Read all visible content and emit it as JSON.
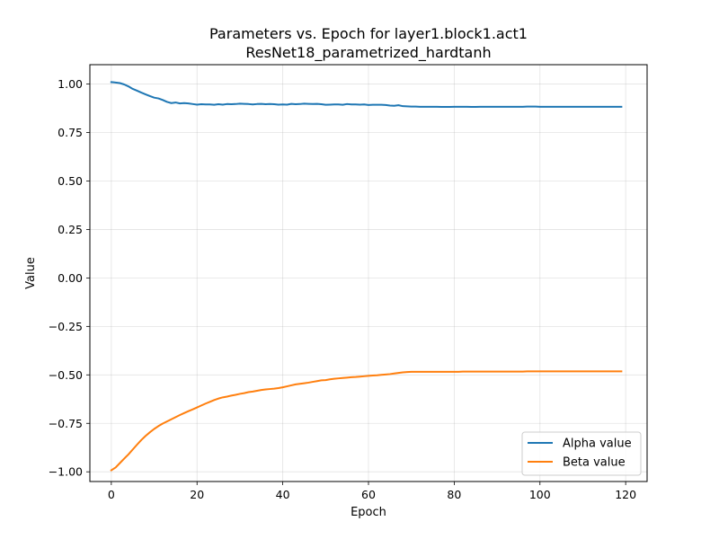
{
  "chart_data": {
    "type": "line",
    "title": "Parameters vs. Epoch for layer1.block1.act1",
    "subtitle": "ResNet18_parametrized_hardtanh",
    "xlabel": "Epoch",
    "ylabel": "Value",
    "xlim": [
      -5,
      125
    ],
    "ylim": [
      -1.05,
      1.1
    ],
    "xticks": [
      0,
      20,
      40,
      60,
      80,
      100,
      120
    ],
    "xtick_labels": [
      "0",
      "20",
      "40",
      "60",
      "80",
      "100",
      "120"
    ],
    "yticks": [
      1.0,
      0.75,
      0.5,
      0.25,
      0.0,
      -0.25,
      -0.5,
      -0.75,
      -1.0
    ],
    "ytick_labels": [
      "1.00",
      "0.75",
      "0.50",
      "0.25",
      "0.00",
      "−0.25",
      "−0.50",
      "−0.75",
      "−1.00"
    ],
    "grid": true,
    "legend_position": "bottom-right",
    "series": [
      {
        "name": "Alpha value",
        "color": "#1f77b4",
        "values": [
          1.01,
          1.008,
          1.005,
          0.998,
          0.988,
          0.975,
          0.966,
          0.956,
          0.947,
          0.938,
          0.93,
          0.926,
          0.918,
          0.908,
          0.902,
          0.905,
          0.9,
          0.902,
          0.9,
          0.897,
          0.894,
          0.896,
          0.895,
          0.895,
          0.893,
          0.896,
          0.894,
          0.897,
          0.896,
          0.897,
          0.899,
          0.898,
          0.897,
          0.895,
          0.897,
          0.898,
          0.896,
          0.897,
          0.896,
          0.894,
          0.895,
          0.894,
          0.898,
          0.896,
          0.897,
          0.899,
          0.898,
          0.897,
          0.898,
          0.896,
          0.893,
          0.894,
          0.895,
          0.895,
          0.893,
          0.897,
          0.895,
          0.895,
          0.894,
          0.895,
          0.892,
          0.893,
          0.893,
          0.893,
          0.892,
          0.889,
          0.888,
          0.891,
          0.886,
          0.885,
          0.884,
          0.884,
          0.883,
          0.883,
          0.883,
          0.883,
          0.883,
          0.882,
          0.882,
          0.882,
          0.883,
          0.883,
          0.883,
          0.883,
          0.882,
          0.882,
          0.883,
          0.883,
          0.883,
          0.883,
          0.883,
          0.883,
          0.883,
          0.883,
          0.883,
          0.883,
          0.883,
          0.884,
          0.884,
          0.884,
          0.883,
          0.883,
          0.883,
          0.883,
          0.883,
          0.883,
          0.883,
          0.883,
          0.883,
          0.883,
          0.883,
          0.883,
          0.883,
          0.883,
          0.883,
          0.883,
          0.883,
          0.883,
          0.883,
          0.883
        ]
      },
      {
        "name": "Beta value",
        "color": "#ff7f0e",
        "values": [
          -0.992,
          -0.978,
          -0.955,
          -0.932,
          -0.91,
          -0.885,
          -0.86,
          -0.836,
          -0.815,
          -0.796,
          -0.779,
          -0.764,
          -0.751,
          -0.74,
          -0.729,
          -0.718,
          -0.707,
          -0.697,
          -0.687,
          -0.678,
          -0.668,
          -0.658,
          -0.648,
          -0.639,
          -0.63,
          -0.622,
          -0.616,
          -0.612,
          -0.607,
          -0.603,
          -0.598,
          -0.594,
          -0.589,
          -0.586,
          -0.582,
          -0.578,
          -0.575,
          -0.573,
          -0.571,
          -0.568,
          -0.564,
          -0.559,
          -0.554,
          -0.549,
          -0.546,
          -0.543,
          -0.54,
          -0.536,
          -0.532,
          -0.528,
          -0.527,
          -0.523,
          -0.52,
          -0.518,
          -0.516,
          -0.514,
          -0.512,
          -0.511,
          -0.509,
          -0.507,
          -0.505,
          -0.503,
          -0.502,
          -0.5,
          -0.498,
          -0.496,
          -0.493,
          -0.49,
          -0.487,
          -0.485,
          -0.484,
          -0.484,
          -0.484,
          -0.484,
          -0.484,
          -0.484,
          -0.484,
          -0.484,
          -0.484,
          -0.484,
          -0.484,
          -0.484,
          -0.483,
          -0.483,
          -0.483,
          -0.483,
          -0.483,
          -0.483,
          -0.483,
          -0.483,
          -0.483,
          -0.483,
          -0.483,
          -0.483,
          -0.483,
          -0.483,
          -0.483,
          -0.482,
          -0.482,
          -0.482,
          -0.482,
          -0.482,
          -0.482,
          -0.482,
          -0.482,
          -0.482,
          -0.482,
          -0.482,
          -0.482,
          -0.482,
          -0.482,
          -0.482,
          -0.482,
          -0.482,
          -0.482,
          -0.482,
          -0.482,
          -0.482,
          -0.482,
          -0.482
        ]
      }
    ]
  }
}
